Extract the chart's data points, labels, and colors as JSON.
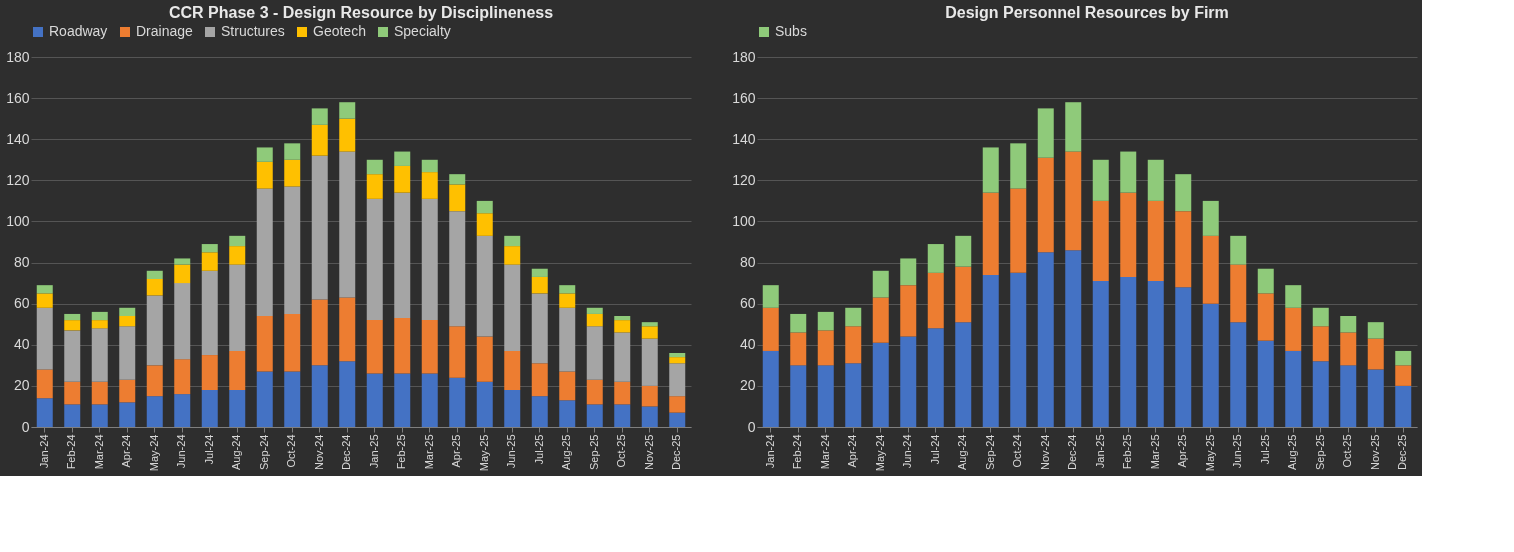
{
  "chart_data": [
    {
      "type": "bar",
      "title": "CCR Phase 3 - Design Resource by Disciplineness",
      "stacked": true,
      "categories": [
        "Jan-24",
        "Feb-24",
        "Mar-24",
        "Apr-24",
        "May-24",
        "Jun-24",
        "Jul-24",
        "Aug-24",
        "Sep-24",
        "Oct-24",
        "Nov-24",
        "Dec-24",
        "Jan-25",
        "Feb-25",
        "Mar-25",
        "Apr-25",
        "May-25",
        "Jun-25",
        "Jul-25",
        "Aug-25",
        "Sep-25",
        "Oct-25",
        "Nov-25",
        "Dec-25"
      ],
      "series": [
        {
          "name": "Roadway",
          "color": "#4472c4",
          "values": [
            14,
            11,
            11,
            12,
            15,
            16,
            18,
            18,
            27,
            27,
            30,
            32,
            26,
            26,
            26,
            24,
            22,
            18,
            15,
            13,
            11,
            11,
            10,
            7
          ]
        },
        {
          "name": "Drainage",
          "color": "#ed7d31",
          "values": [
            14,
            11,
            11,
            11,
            15,
            17,
            17,
            19,
            27,
            28,
            32,
            31,
            26,
            27,
            26,
            25,
            22,
            19,
            16,
            14,
            12,
            11,
            10,
            8
          ]
        },
        {
          "name": "Structures",
          "color": "#a5a5a5",
          "values": [
            30,
            25,
            26,
            26,
            34,
            37,
            41,
            42,
            62,
            62,
            70,
            71,
            59,
            61,
            59,
            56,
            49,
            42,
            34,
            31,
            26,
            24,
            23,
            16
          ]
        },
        {
          "name": "Geotech",
          "color": "#ffc000",
          "values": [
            7,
            5,
            4,
            5,
            8,
            9,
            9,
            9,
            13,
            13,
            15,
            16,
            12,
            13,
            13,
            13,
            11,
            9,
            8,
            7,
            6,
            6,
            6,
            3
          ]
        },
        {
          "name": "Specialty",
          "color": "#8fca7a",
          "values": [
            4,
            3,
            4,
            4,
            4,
            3,
            4,
            5,
            7,
            8,
            8,
            8,
            7,
            7,
            6,
            5,
            6,
            5,
            4,
            4,
            3,
            2,
            2,
            2
          ]
        }
      ],
      "ylim": [
        0,
        180
      ],
      "yticks": [
        0,
        20,
        40,
        60,
        80,
        100,
        120,
        140,
        160,
        180
      ],
      "grid": "y",
      "legend": "top"
    },
    {
      "type": "bar",
      "title": "Design Personnel Resources by Firm",
      "stacked": true,
      "categories": [
        "Jan-24",
        "Feb-24",
        "Mar-24",
        "Apr-24",
        "May-24",
        "Jun-24",
        "Jul-24",
        "Aug-24",
        "Sep-24",
        "Oct-24",
        "Nov-24",
        "Dec-24",
        "Jan-25",
        "Feb-25",
        "Mar-25",
        "Apr-25",
        "May-25",
        "Jun-25",
        "Jul-25",
        "Aug-25",
        "Sep-25",
        "Oct-25",
        "Nov-25",
        "Dec-25"
      ],
      "series": [
        {
          "color": "#4472c4",
          "values": [
            37,
            30,
            30,
            31,
            41,
            44,
            48,
            51,
            74,
            75,
            85,
            86,
            71,
            73,
            71,
            68,
            60,
            51,
            42,
            37,
            32,
            30,
            28,
            20
          ]
        },
        {
          "color": "#ed7d31",
          "values": [
            21,
            16,
            17,
            18,
            22,
            25,
            27,
            27,
            40,
            41,
            46,
            48,
            39,
            41,
            39,
            37,
            33,
            28,
            23,
            21,
            17,
            16,
            15,
            10
          ]
        },
        {
          "name": "Subs",
          "color": "#8fca7a",
          "values": [
            11,
            9,
            9,
            9,
            13,
            13,
            14,
            15,
            22,
            22,
            24,
            24,
            20,
            20,
            20,
            18,
            17,
            14,
            12,
            11,
            9,
            8,
            8,
            7
          ]
        }
      ],
      "ylim": [
        0,
        180
      ],
      "yticks": [
        0,
        20,
        40,
        60,
        80,
        100,
        120,
        140,
        160,
        180
      ],
      "grid": "y",
      "legend": "top"
    }
  ]
}
